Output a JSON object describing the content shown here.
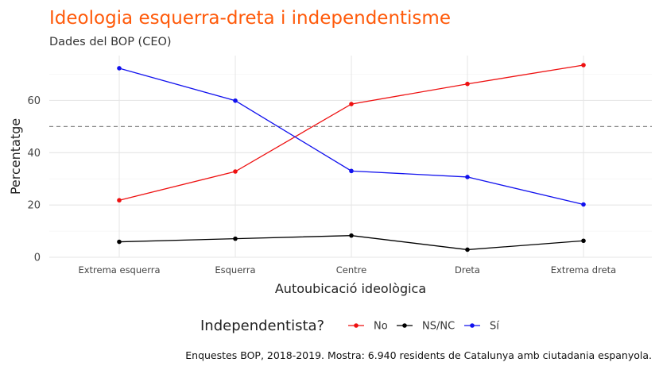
{
  "chart_data": {
    "type": "line",
    "title": "Ideologia esquerra-dreta i independentisme",
    "subtitle": "Dades del BOP (CEO)",
    "xlabel": "Autoubicació ideològica",
    "ylabel": "Percentatge",
    "caption": "Enquestes BOP, 2018-2019. Mostra: 6.940 residents de Catalunya amb ciutadania espanyola.",
    "categories": [
      "Extrema esquerra",
      "Esquerra",
      "Centre",
      "Dreta",
      "Extrema dreta"
    ],
    "ylim": [
      0,
      78
    ],
    "yticks": [
      0,
      20,
      40,
      60
    ],
    "reference_line": {
      "y": 50,
      "style": "dashed",
      "color": "#888888"
    },
    "grid": true,
    "legend": {
      "title": "Independentista?",
      "placement": "bottom"
    },
    "series": [
      {
        "name": "No",
        "color": "#ee1111",
        "values": [
          21.8,
          32.8,
          58.6,
          66.3,
          73.5
        ]
      },
      {
        "name": "NS/NC",
        "color": "#000000",
        "values": [
          5.9,
          7.1,
          8.3,
          2.9,
          6.3
        ]
      },
      {
        "name": "Sí",
        "color": "#1111ee",
        "values": [
          72.3,
          59.9,
          33.0,
          30.7,
          20.2
        ]
      }
    ]
  }
}
